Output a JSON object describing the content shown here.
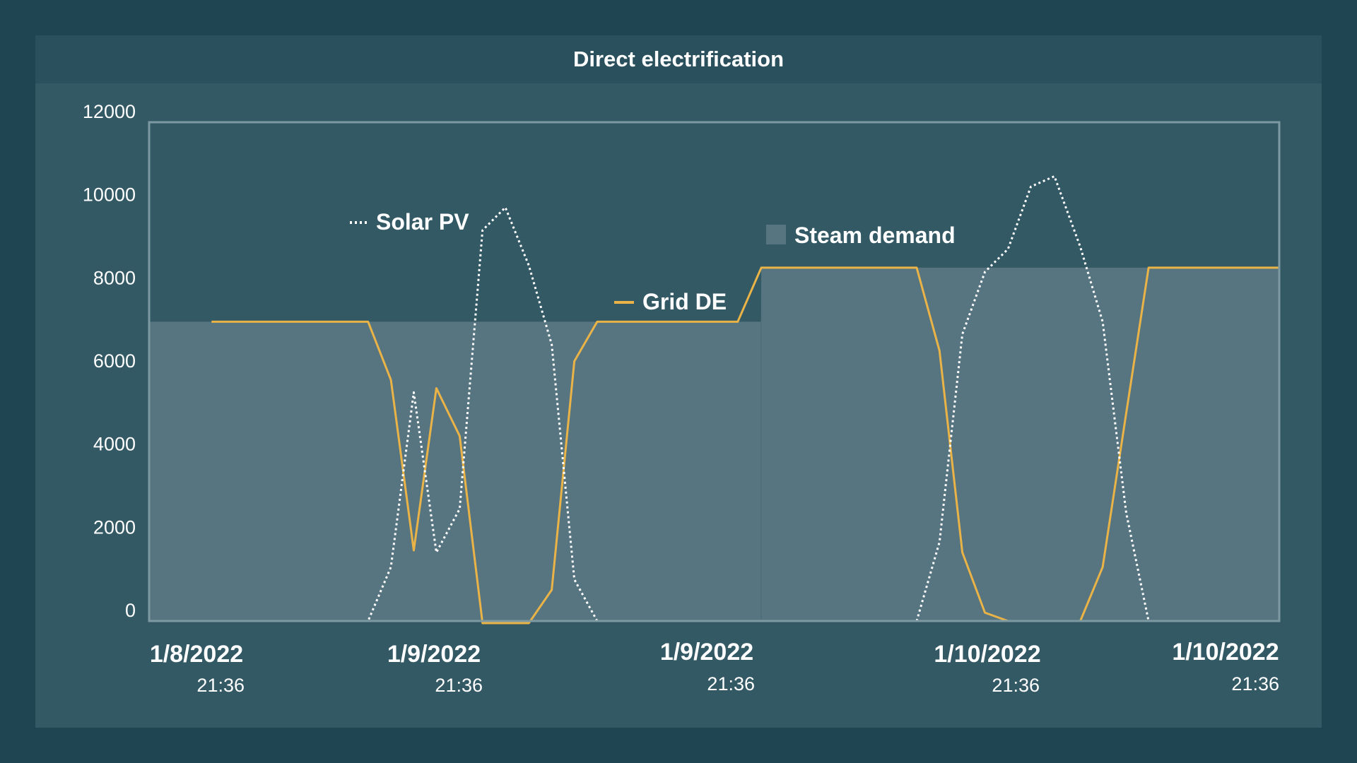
{
  "chart_data": {
    "type": "line",
    "title": "Direct electrification",
    "ylim": [
      0,
      12000
    ],
    "yticks": [
      0,
      2000,
      4000,
      6000,
      8000,
      10000,
      12000
    ],
    "xticks": [
      {
        "date": "1/8/2022",
        "time": "21:36"
      },
      {
        "date": "1/9/2022",
        "time": "21:36"
      },
      {
        "date": "1/9/2022",
        "time": "21:36"
      },
      {
        "date": "1/10/2022",
        "time": "21:36"
      },
      {
        "date": "1/10/2022",
        "time": "21:36"
      }
    ],
    "grid": false,
    "x_range": [
      0,
      48
    ],
    "series": [
      {
        "name": "Steam demand",
        "kind": "area",
        "color": "#577580",
        "x": [
          0,
          25.99,
          26,
          48
        ],
        "values": [
          7200,
          7200,
          8500,
          8500
        ]
      },
      {
        "name": "Grid DE",
        "kind": "line",
        "color": "#e9b347",
        "x": [
          2.65,
          9.3,
          10.27,
          11.24,
          12.2,
          13.19,
          14.16,
          15.13,
          16.13,
          17.1,
          18.06,
          19.03,
          25.0,
          26.0,
          32.6,
          33.57,
          34.54,
          35.5,
          36.48,
          37.45,
          39.55,
          40.5,
          41.5,
          42.45,
          48.0
        ],
        "values": [
          7200,
          7200,
          5800,
          1700,
          5600,
          4450,
          -50,
          -50,
          -50,
          750,
          6250,
          7200,
          7200,
          8500,
          8500,
          6500,
          1650,
          200,
          0,
          0,
          0,
          1300,
          5000,
          8500,
          8500
        ]
      },
      {
        "name": "Solar PV",
        "kind": "dotted-line",
        "color": "#ffffff",
        "x": [
          2.65,
          9.3,
          10.27,
          11.24,
          12.2,
          13.19,
          14.16,
          15.13,
          16.13,
          17.1,
          18.06,
          19.03,
          25.0,
          26.0,
          32.6,
          33.57,
          34.54,
          35.5,
          36.48,
          37.45,
          38.45,
          39.55,
          40.5,
          41.5,
          42.45,
          48.0
        ],
        "values": [
          0,
          0,
          1300,
          5500,
          1650,
          2700,
          9400,
          9950,
          8550,
          6650,
          1000,
          0,
          0,
          0,
          0,
          1900,
          6900,
          8400,
          8950,
          10450,
          10700,
          9000,
          7200,
          2600,
          0,
          0
        ]
      }
    ],
    "legend": {
      "solar": "Solar PV",
      "grid": "Grid DE",
      "steam": "Steam demand"
    }
  }
}
